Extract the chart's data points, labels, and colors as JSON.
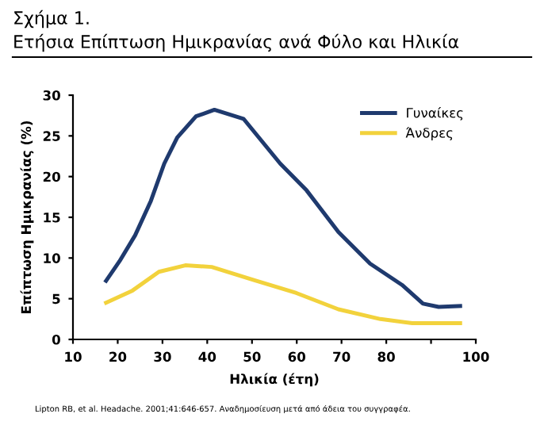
{
  "chart_data": {
    "type": "line",
    "title": "Σχήμα 1.",
    "subtitle": "Ετήσια Επίπτωση Ημικρανίας ανά Φύλο και Ηλικία",
    "xlabel": "Ηλικία (έτη)",
    "ylabel": "Επίπτωση Ημικρανίας (%)",
    "xlim": [
      10,
      100
    ],
    "xticks": [
      10,
      20,
      30,
      40,
      50,
      60,
      70,
      80,
      {
        "value": 90,
        "label": null
      },
      100
    ],
    "ylim": [
      0,
      30
    ],
    "yticks": [
      0,
      5,
      10,
      15,
      20,
      25,
      30
    ],
    "grid": false,
    "legend": "top right",
    "marker": "none",
    "line_style": "solid",
    "series": [
      {
        "name": "Γυναίκες",
        "color": "#1f3a6e",
        "x": [
          17.4,
          20.4,
          23.9,
          27.4,
          30.4,
          33.3,
          37.5,
          41.6,
          48.1,
          56.3,
          62.2,
          69.3,
          76.4,
          83.5,
          88.2,
          91.7,
          96.5
        ],
        "values": [
          7.2,
          9.6,
          12.8,
          17,
          21.6,
          24.8,
          27.4,
          28.2,
          27.1,
          21.6,
          18.3,
          13.2,
          9.3,
          6.7,
          4.4,
          4,
          4.1
        ]
      },
      {
        "name": "Άνδρες",
        "color": "#f2d23c",
        "x": [
          17.4,
          23.3,
          29.2,
          35.1,
          41,
          50.4,
          59.9,
          69.3,
          78.7,
          85.8,
          96.5
        ],
        "values": [
          4.5,
          6,
          8.3,
          9.1,
          8.9,
          7.3,
          5.7,
          3.7,
          2.5,
          2,
          2
        ]
      }
    ],
    "annotations": [
      "Lipton RB, et al. Headache. 2001;41:646-657. Αναδημοσίευση μετά από άδεια του συγγραφέα."
    ]
  }
}
